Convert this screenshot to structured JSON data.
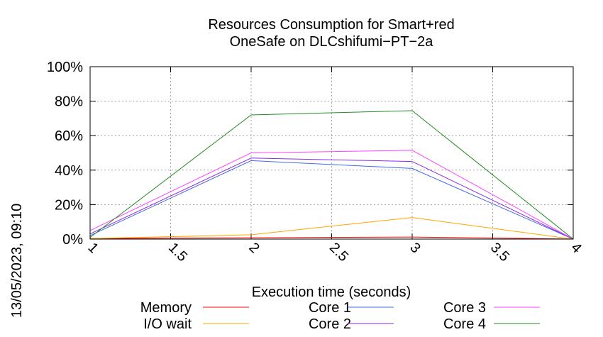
{
  "chart_data": {
    "type": "line",
    "title_lines": [
      "Resources Consumption for Smart+red",
      "OneSafe on DLCshifumi−PT−2a"
    ],
    "xlabel": "Execution time (seconds)",
    "ylabel": "",
    "timestamp": "13/05/2023, 09:10",
    "xlim": [
      1,
      4
    ],
    "ylim": [
      0,
      100
    ],
    "x_ticks": [
      1,
      1.5,
      2,
      2.5,
      3,
      3.5,
      4
    ],
    "x_tick_labels": [
      "1",
      "1.5",
      "2",
      "2.5",
      "3",
      "3.5",
      "4"
    ],
    "y_ticks": [
      0,
      20,
      40,
      60,
      80,
      100
    ],
    "y_tick_labels": [
      "0%",
      "20%",
      "40%",
      "60%",
      "80%",
      "100%"
    ],
    "grid": true,
    "legend_position": "bottom",
    "x": [
      1,
      2,
      3,
      4
    ],
    "series": [
      {
        "name": "Memory",
        "color": "#ff0000",
        "values": [
          0.3,
          0.8,
          1.2,
          0
        ]
      },
      {
        "name": "I/O wait",
        "color": "#ffa500",
        "values": [
          0.3,
          2.5,
          12.5,
          0
        ]
      },
      {
        "name": "Core 1",
        "color": "#4169e1",
        "values": [
          2,
          45.5,
          41,
          0
        ]
      },
      {
        "name": "Core 2",
        "color": "#8a2be2",
        "values": [
          3,
          47,
          45,
          0
        ]
      },
      {
        "name": "Core 3",
        "color": "#ff44ff",
        "values": [
          5,
          50,
          51.5,
          0
        ]
      },
      {
        "name": "Core 4",
        "color": "#228b22",
        "values": [
          1,
          72,
          74.5,
          0
        ]
      }
    ]
  }
}
